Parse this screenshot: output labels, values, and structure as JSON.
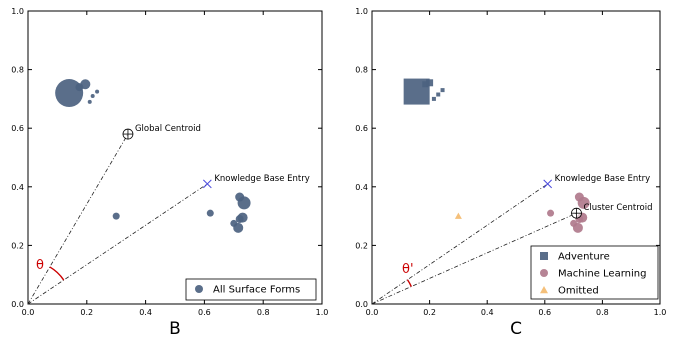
{
  "chart_data": [
    {
      "type": "scatter",
      "panel_label": "B",
      "xlim": [
        0,
        1
      ],
      "ylim": [
        0,
        1
      ],
      "xticks": [
        "0.0",
        "0.2",
        "0.4",
        "0.6",
        "0.8",
        "1.0"
      ],
      "yticks": [
        "0.0",
        "0.2",
        "0.4",
        "0.6",
        "0.8",
        "1.0"
      ],
      "grid": false,
      "legend_position": "lower-right",
      "series": [
        {
          "name": "All Surface Forms",
          "marker": "circle",
          "color": "#4c6280",
          "points": [
            {
              "x": 0.14,
              "y": 0.72,
              "size": 14
            },
            {
              "x": 0.175,
              "y": 0.74,
              "size": 4
            },
            {
              "x": 0.195,
              "y": 0.75,
              "size": 5
            },
            {
              "x": 0.21,
              "y": 0.69,
              "size": 2
            },
            {
              "x": 0.22,
              "y": 0.71,
              "size": 2
            },
            {
              "x": 0.235,
              "y": 0.725,
              "size": 2
            },
            {
              "x": 0.3,
              "y": 0.3,
              "size": 3.5
            },
            {
              "x": 0.62,
              "y": 0.31,
              "size": 3.5
            },
            {
              "x": 0.7,
              "y": 0.275,
              "size": 3.5
            },
            {
              "x": 0.72,
              "y": 0.365,
              "size": 4.5
            },
            {
              "x": 0.735,
              "y": 0.345,
              "size": 6.5
            },
            {
              "x": 0.72,
              "y": 0.29,
              "size": 4
            },
            {
              "x": 0.73,
              "y": 0.295,
              "size": 5
            },
            {
              "x": 0.715,
              "y": 0.26,
              "size": 5
            }
          ]
        }
      ],
      "special_points": [
        {
          "label": "Global Centroid",
          "x": 0.34,
          "y": 0.58,
          "marker": "circled-plus"
        },
        {
          "label": "Knowledge Base Entry",
          "x": 0.61,
          "y": 0.41,
          "marker": "x"
        }
      ],
      "angle_label": "θ",
      "legend": [
        "All Surface Forms"
      ]
    },
    {
      "type": "scatter",
      "panel_label": "C",
      "xlim": [
        0,
        1
      ],
      "ylim": [
        0,
        1
      ],
      "xticks": [
        "0.0",
        "0.2",
        "0.4",
        "0.6",
        "0.8",
        "1.0"
      ],
      "yticks": [
        "0.0",
        "0.2",
        "0.4",
        "0.6",
        "0.8",
        "1.0"
      ],
      "grid": false,
      "legend_position": "lower-right",
      "series": [
        {
          "name": "Adventure",
          "marker": "square",
          "color": "#4c6280",
          "points": [
            {
              "x": 0.155,
              "y": 0.725,
              "size": 13
            },
            {
              "x": 0.185,
              "y": 0.75,
              "size": 3
            },
            {
              "x": 0.2,
              "y": 0.755,
              "size": 3.5
            },
            {
              "x": 0.215,
              "y": 0.7,
              "size": 2
            },
            {
              "x": 0.23,
              "y": 0.715,
              "size": 2
            },
            {
              "x": 0.245,
              "y": 0.73,
              "size": 2
            }
          ]
        },
        {
          "name": "Machine Learning",
          "marker": "circle",
          "color": "#b07a8c",
          "points": [
            {
              "x": 0.62,
              "y": 0.31,
              "size": 3.5
            },
            {
              "x": 0.7,
              "y": 0.275,
              "size": 3.5
            },
            {
              "x": 0.72,
              "y": 0.365,
              "size": 4.5
            },
            {
              "x": 0.735,
              "y": 0.345,
              "size": 6
            },
            {
              "x": 0.72,
              "y": 0.29,
              "size": 4
            },
            {
              "x": 0.73,
              "y": 0.295,
              "size": 5
            },
            {
              "x": 0.715,
              "y": 0.26,
              "size": 5
            }
          ]
        },
        {
          "name": "Omitted",
          "marker": "triangle",
          "color": "#f5c07a",
          "points": [
            {
              "x": 0.3,
              "y": 0.3,
              "size": 3.5
            }
          ]
        }
      ],
      "special_points": [
        {
          "label": "Knowledge Base Entry",
          "x": 0.61,
          "y": 0.41,
          "marker": "x"
        },
        {
          "label": "Cluster Centroid",
          "x": 0.71,
          "y": 0.31,
          "marker": "circled-plus"
        }
      ],
      "angle_label": "θ'",
      "legend": [
        "Adventure",
        "Machine Learning",
        "Omitted"
      ]
    }
  ]
}
